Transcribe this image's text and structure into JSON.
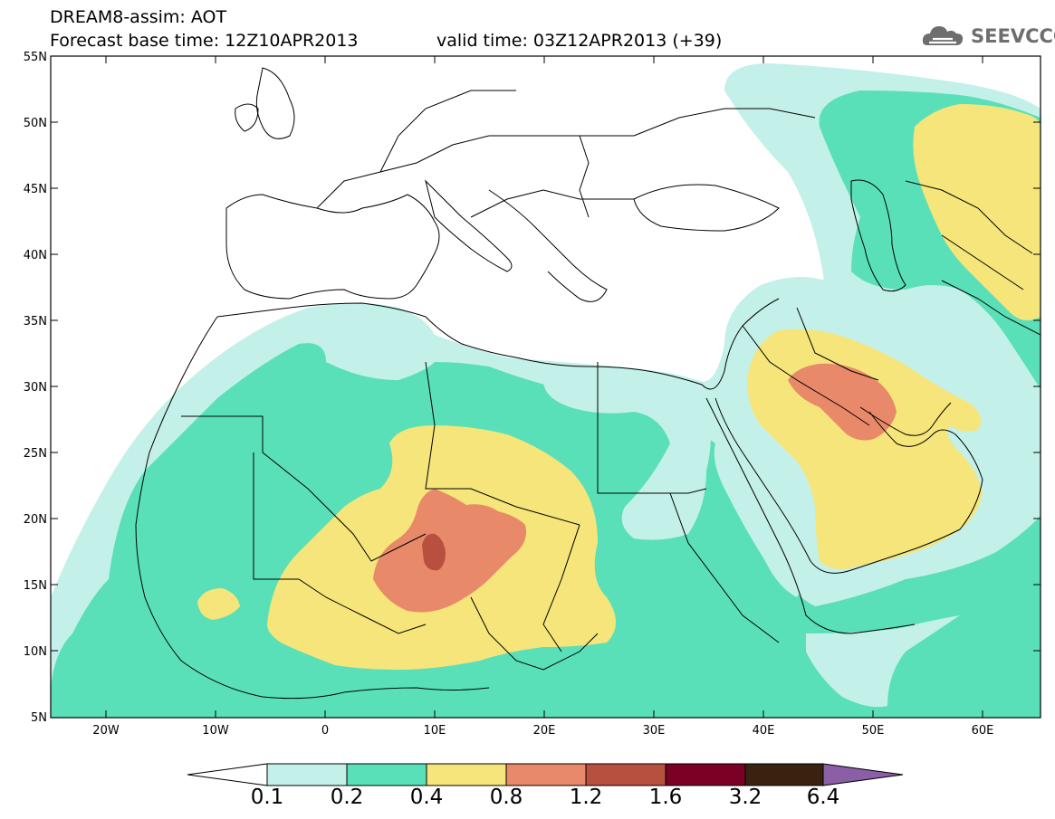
{
  "header": {
    "title_line1": "DREAM8-assim: AOT",
    "title_line2": "Forecast base time: 12Z10APR2013",
    "valid_time": "valid time: 03Z12APR2013 (+39)",
    "logo_text": "SEEVCCC"
  },
  "map": {
    "lat_labels": [
      "55N",
      "50N",
      "45N",
      "40N",
      "35N",
      "30N",
      "25N",
      "20N",
      "15N",
      "10N",
      "5N"
    ],
    "lon_labels": [
      "20W",
      "10W",
      "0",
      "10E",
      "20E",
      "30E",
      "40E",
      "50E",
      "60E"
    ],
    "extent": {
      "lon_min": -25,
      "lon_max": 65,
      "lat_min": 5,
      "lat_max": 55
    }
  },
  "colorbar": {
    "labels": [
      "0.1",
      "0.2",
      "0.4",
      "0.8",
      "1.2",
      "1.6",
      "3.2",
      "6.4"
    ],
    "colors": [
      "#c4f0ea",
      "#5ae0b8",
      "#f5e57a",
      "#e8896a",
      "#b85040",
      "#7a0025",
      "#3a2210",
      "#8a5fa5"
    ]
  },
  "levels": {
    "aot_0_1": "#c4f0ea",
    "aot_0_2": "#5ae0b8",
    "aot_0_4": "#f5e57a",
    "aot_0_8": "#e8896a",
    "aot_1_2": "#b85040"
  }
}
